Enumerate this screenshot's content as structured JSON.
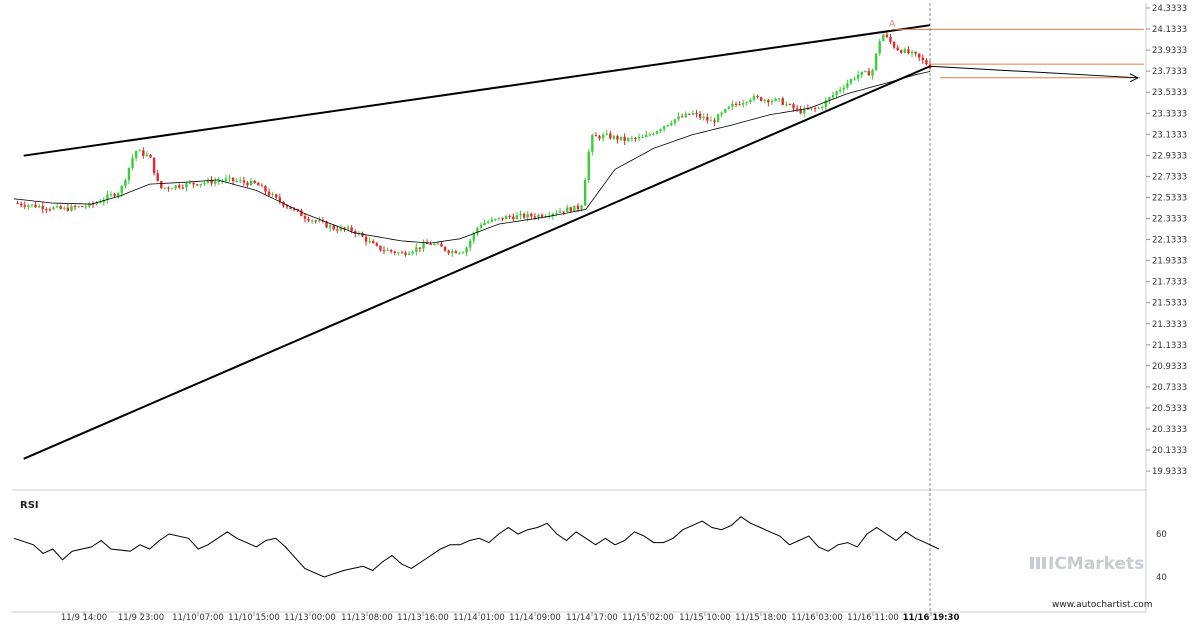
{
  "chart_data": {
    "type": "candlestick",
    "y_axis": {
      "ticks": [
        "24.3333",
        "24.1333",
        "23.9333",
        "23.7333",
        "23.5333",
        "23.3333",
        "23.1333",
        "22.9333",
        "22.7333",
        "22.5333",
        "22.3333",
        "22.1333",
        "21.9333",
        "21.7333",
        "21.5333",
        "21.3333",
        "21.1333",
        "20.9333",
        "20.7333",
        "20.5333",
        "20.3333",
        "20.1333",
        "19.9333"
      ],
      "range": [
        19.9333,
        24.3333
      ]
    },
    "x_axis": {
      "ticks": [
        "11/9 14:00",
        "11/9 23:00",
        "11/10 07:00",
        "11/10 15:00",
        "11/13 00:00",
        "11/13 08:00",
        "11/13 16:00",
        "11/14 01:00",
        "11/14 09:00",
        "11/14 17:00",
        "11/15 02:00",
        "11/15 10:00",
        "11/15 18:00",
        "11/16 03:00",
        "11/16 11:00",
        "11/16 19:30"
      ]
    },
    "price_path": [
      [
        0,
        22.48
      ],
      [
        5,
        22.42
      ],
      [
        8,
        22.46
      ],
      [
        11,
        22.6
      ],
      [
        12.5,
        22.98
      ],
      [
        14,
        22.92
      ],
      [
        15,
        22.62
      ],
      [
        18,
        22.66
      ],
      [
        22,
        22.7
      ],
      [
        25,
        22.66
      ],
      [
        27,
        22.52
      ],
      [
        30,
        22.35
      ],
      [
        33,
        22.24
      ],
      [
        35,
        22.22
      ],
      [
        37.5,
        22.05
      ],
      [
        40,
        22.0
      ],
      [
        43,
        22.1
      ],
      [
        45,
        22.02
      ],
      [
        46.5,
        22.03
      ],
      [
        48,
        22.28
      ],
      [
        51,
        22.35
      ],
      [
        54,
        22.36
      ],
      [
        56,
        22.4
      ],
      [
        57,
        22.42
      ],
      [
        58.5,
        22.44
      ],
      [
        59.5,
        23.1
      ],
      [
        61,
        23.12
      ],
      [
        63,
        23.08
      ],
      [
        65,
        23.1
      ],
      [
        68,
        23.27
      ],
      [
        70,
        23.33
      ],
      [
        72,
        23.25
      ],
      [
        74,
        23.4
      ],
      [
        76,
        23.48
      ],
      [
        79,
        23.45
      ],
      [
        81,
        23.35
      ],
      [
        83,
        23.38
      ],
      [
        85,
        23.55
      ],
      [
        87,
        23.7
      ],
      [
        88.5,
        23.72
      ],
      [
        89.5,
        24.1
      ],
      [
        91,
        23.95
      ],
      [
        93,
        23.88
      ],
      [
        94.5,
        23.78
      ]
    ],
    "moving_average": [
      [
        0,
        22.52
      ],
      [
        4,
        22.48
      ],
      [
        8,
        22.47
      ],
      [
        11,
        22.55
      ],
      [
        14,
        22.66
      ],
      [
        18,
        22.68
      ],
      [
        21,
        22.7
      ],
      [
        25,
        22.6
      ],
      [
        30,
        22.38
      ],
      [
        35,
        22.2
      ],
      [
        40,
        22.12
      ],
      [
        43,
        22.1
      ],
      [
        46,
        22.14
      ],
      [
        50,
        22.28
      ],
      [
        55,
        22.35
      ],
      [
        59,
        22.42
      ],
      [
        62,
        22.8
      ],
      [
        66,
        23.0
      ],
      [
        70,
        23.13
      ],
      [
        74,
        23.22
      ],
      [
        78,
        23.32
      ],
      [
        82,
        23.38
      ],
      [
        86,
        23.52
      ],
      [
        90,
        23.62
      ],
      [
        93,
        23.7
      ],
      [
        94.5,
        23.73
      ]
    ],
    "pattern": {
      "name": "Rising Wedge",
      "upper_line": [
        [
          1,
          22.93
        ],
        [
          94.5,
          24.17
        ]
      ],
      "lower_line": [
        [
          1,
          20.05
        ],
        [
          94.5,
          23.78
        ]
      ],
      "forecast_arrow": [
        [
          94.5,
          23.78
        ],
        [
          116,
          23.67
        ]
      ],
      "levels": [
        24.13,
        23.8,
        23.67
      ],
      "marker_label": "A",
      "current_time_label": "11/16 19:30"
    },
    "rsi": {
      "title": "RSI",
      "levels": [
        "60",
        "40"
      ],
      "values": [
        [
          0,
          58
        ],
        [
          2,
          55
        ],
        [
          3,
          51
        ],
        [
          4,
          53
        ],
        [
          5,
          48
        ],
        [
          6,
          52
        ],
        [
          8,
          54
        ],
        [
          9,
          57
        ],
        [
          10,
          53
        ],
        [
          12,
          52
        ],
        [
          13,
          55
        ],
        [
          14,
          53
        ],
        [
          15,
          57
        ],
        [
          16,
          60
        ],
        [
          18,
          58
        ],
        [
          19,
          53
        ],
        [
          20,
          55
        ],
        [
          21,
          58
        ],
        [
          22,
          61
        ],
        [
          23,
          58
        ],
        [
          24,
          56
        ],
        [
          25,
          54
        ],
        [
          26,
          57
        ],
        [
          27,
          58
        ],
        [
          28,
          54
        ],
        [
          30,
          44
        ],
        [
          32,
          40
        ],
        [
          34,
          43
        ],
        [
          36,
          45
        ],
        [
          37,
          43
        ],
        [
          38,
          47
        ],
        [
          39,
          50
        ],
        [
          40,
          46
        ],
        [
          41,
          44
        ],
        [
          42,
          47
        ],
        [
          43,
          50
        ],
        [
          44,
          53
        ],
        [
          45,
          55
        ],
        [
          46,
          55
        ],
        [
          47,
          57
        ],
        [
          48,
          58
        ],
        [
          49,
          56
        ],
        [
          50,
          60
        ],
        [
          51,
          63
        ],
        [
          52,
          60
        ],
        [
          53,
          62
        ],
        [
          54,
          63
        ],
        [
          55,
          65
        ],
        [
          56,
          60
        ],
        [
          57,
          57
        ],
        [
          58,
          61
        ],
        [
          59,
          58
        ],
        [
          60,
          55
        ],
        [
          61,
          58
        ],
        [
          62,
          55
        ],
        [
          63,
          57
        ],
        [
          64,
          61
        ],
        [
          65,
          59
        ],
        [
          66,
          56
        ],
        [
          67,
          56
        ],
        [
          68,
          58
        ],
        [
          69,
          62
        ],
        [
          70,
          64
        ],
        [
          71,
          66
        ],
        [
          72,
          63
        ],
        [
          73,
          62
        ],
        [
          74,
          64
        ],
        [
          75,
          68
        ],
        [
          76,
          65
        ],
        [
          77,
          63
        ],
        [
          78,
          61
        ],
        [
          79,
          59
        ],
        [
          80,
          55
        ],
        [
          81,
          57
        ],
        [
          82,
          59
        ],
        [
          83,
          54
        ],
        [
          84,
          52
        ],
        [
          85,
          55
        ],
        [
          86,
          56
        ],
        [
          87,
          54
        ],
        [
          88,
          60
        ],
        [
          89,
          63
        ],
        [
          90,
          60
        ],
        [
          91,
          57
        ],
        [
          92,
          61
        ],
        [
          93,
          58
        ],
        [
          94,
          56
        ],
        [
          94.5,
          53
        ]
      ]
    }
  },
  "branding": {
    "logo_text": "ICMarkets",
    "website": "www.autochartist.com"
  },
  "colors": {
    "up_candle": "#3ccc3c",
    "down_candle": "#e02a2a",
    "level_line": "#e07b4a",
    "trend_line": "#000000",
    "ma_line": "#000000",
    "grid": "#f0f0f0"
  }
}
